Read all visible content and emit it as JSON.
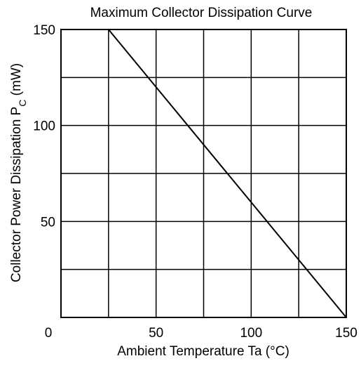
{
  "chart_data": {
    "type": "line",
    "title": "Maximum Collector Dissipation Curve",
    "xlabel": "Ambient Temperature  Ta  (°C)",
    "ylabel": {
      "main": "Collector Power Dissipation  P",
      "subscript": "C",
      "unit": "  (mW)"
    },
    "xlim": [
      0,
      150
    ],
    "ylim": [
      0,
      150
    ],
    "x_ticks": [
      {
        "value": 0,
        "label": "0"
      },
      {
        "value": 50,
        "label": "50"
      },
      {
        "value": 100,
        "label": "100"
      },
      {
        "value": 150,
        "label": "150"
      }
    ],
    "y_ticks": [
      {
        "value": 50,
        "label": "50"
      },
      {
        "value": 100,
        "label": "100"
      },
      {
        "value": 150,
        "label": "150"
      }
    ],
    "x_grid": [
      25,
      50,
      75,
      100,
      125
    ],
    "y_grid": [
      25,
      50,
      75,
      100,
      125
    ],
    "grid": true,
    "series": [
      {
        "x": [
          25,
          150
        ],
        "y": [
          150,
          0
        ]
      }
    ]
  }
}
